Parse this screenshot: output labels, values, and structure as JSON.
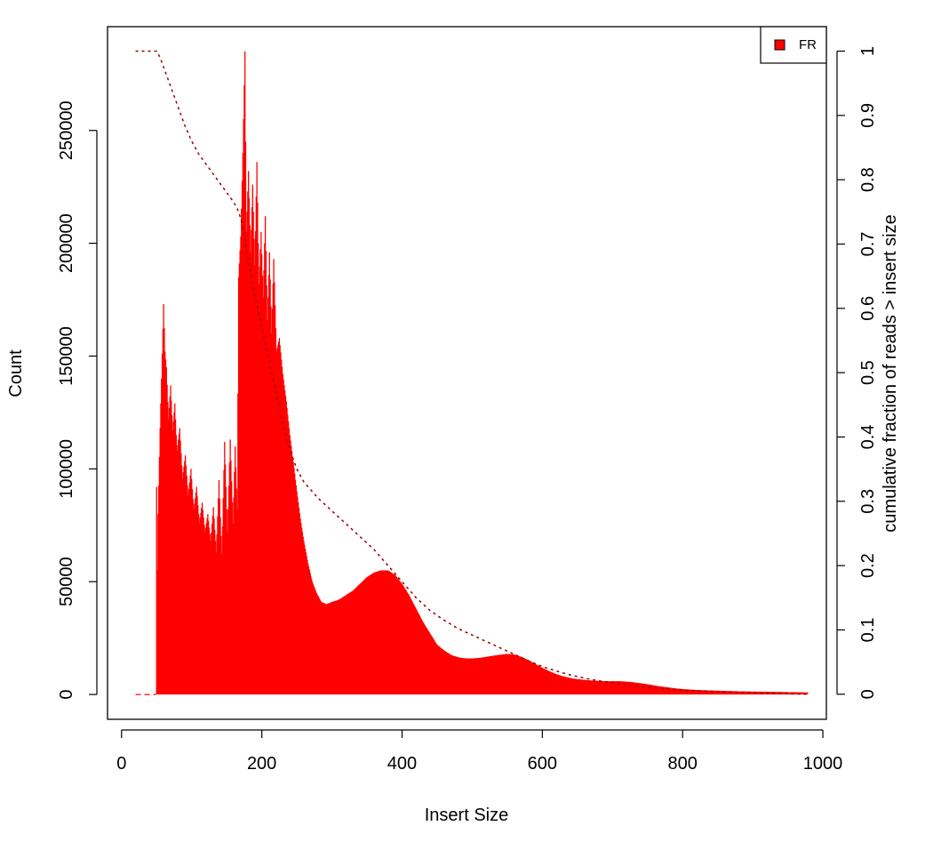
{
  "chart_data": {
    "type": "area",
    "title": "",
    "xlabel": "Insert Size",
    "ylabel": "Count",
    "y2label": "cumulative fraction of reads > insert size",
    "xlim": [
      -20,
      1005
    ],
    "ylim": [
      -11000,
      296000
    ],
    "y2lim": [
      -0.039,
      1.038
    ],
    "xticks": [
      0,
      200,
      400,
      600,
      800,
      1000
    ],
    "yticks": [
      0,
      50000,
      100000,
      150000,
      200000,
      250000
    ],
    "y2ticks": [
      0,
      0.1,
      0.2,
      0.3,
      0.4,
      0.5,
      0.6,
      0.7,
      0.8,
      0.9,
      1
    ],
    "legend": {
      "position": "top-right",
      "entries": [
        {
          "label": "FR",
          "color": "#ff0000"
        }
      ]
    },
    "colors": {
      "histogram": "#ff0000",
      "cumulative": "#990000"
    },
    "series": [
      {
        "name": "FR",
        "kind": "histogram",
        "x_range": [
          20,
          978
        ],
        "points": [
          [
            20,
            0
          ],
          [
            45,
            0
          ],
          [
            49,
            0
          ],
          [
            50,
            92000
          ],
          [
            51,
            55000
          ],
          [
            52,
            80000
          ],
          [
            55,
            118000
          ],
          [
            57,
            140000
          ],
          [
            60,
            173000
          ],
          [
            62,
            152000
          ],
          [
            64,
            145000
          ],
          [
            67,
            122000
          ],
          [
            70,
            137000
          ],
          [
            73,
            117000
          ],
          [
            76,
            129000
          ],
          [
            79,
            108000
          ],
          [
            83,
            118000
          ],
          [
            87,
            96000
          ],
          [
            91,
            106000
          ],
          [
            95,
            88000
          ],
          [
            99,
            100000
          ],
          [
            103,
            82000
          ],
          [
            107,
            92000
          ],
          [
            111,
            76000
          ],
          [
            115,
            85000
          ],
          [
            119,
            72000
          ],
          [
            123,
            80000
          ],
          [
            127,
            68000
          ],
          [
            131,
            83000
          ],
          [
            135,
            63000
          ],
          [
            139,
            95000
          ],
          [
            143,
            62000
          ],
          [
            147,
            112000
          ],
          [
            151,
            72000
          ],
          [
            155,
            113000
          ],
          [
            159,
            76000
          ],
          [
            162,
            110000
          ],
          [
            165,
            82000
          ],
          [
            167,
            185000
          ],
          [
            170,
            203000
          ],
          [
            173,
            240000
          ],
          [
            176,
            285000
          ],
          [
            178,
            205000
          ],
          [
            181,
            232000
          ],
          [
            184,
            196000
          ],
          [
            187,
            226000
          ],
          [
            190,
            190000
          ],
          [
            193,
            236000
          ],
          [
            196,
            182000
          ],
          [
            199,
            205000
          ],
          [
            202,
            176000
          ],
          [
            205,
            212000
          ],
          [
            208,
            166000
          ],
          [
            211,
            196000
          ],
          [
            214,
            160000
          ],
          [
            217,
            193000
          ],
          [
            221,
            152000
          ],
          [
            225,
            158000
          ],
          [
            230,
            142000
          ],
          [
            235,
            130000
          ],
          [
            240,
            115000
          ],
          [
            245,
            103000
          ],
          [
            250,
            90000
          ],
          [
            255,
            78000
          ],
          [
            260,
            68000
          ],
          [
            266,
            58000
          ],
          [
            272,
            50000
          ],
          [
            278,
            45000
          ],
          [
            285,
            41000
          ],
          [
            292,
            40000
          ],
          [
            300,
            41000
          ],
          [
            310,
            42000
          ],
          [
            320,
            44000
          ],
          [
            330,
            46000
          ],
          [
            340,
            49000
          ],
          [
            350,
            52000
          ],
          [
            360,
            54000
          ],
          [
            370,
            55000
          ],
          [
            380,
            55000
          ],
          [
            390,
            53000
          ],
          [
            400,
            49000
          ],
          [
            410,
            44000
          ],
          [
            420,
            38000
          ],
          [
            430,
            32000
          ],
          [
            440,
            27000
          ],
          [
            450,
            22000
          ],
          [
            460,
            19500
          ],
          [
            470,
            17500
          ],
          [
            480,
            16500
          ],
          [
            490,
            16000
          ],
          [
            500,
            16000
          ],
          [
            510,
            16200
          ],
          [
            520,
            16700
          ],
          [
            530,
            17200
          ],
          [
            540,
            17600
          ],
          [
            550,
            18000
          ],
          [
            560,
            17700
          ],
          [
            570,
            16700
          ],
          [
            580,
            15200
          ],
          [
            590,
            13500
          ],
          [
            600,
            11800
          ],
          [
            610,
            10300
          ],
          [
            620,
            9000
          ],
          [
            630,
            8000
          ],
          [
            640,
            7300
          ],
          [
            650,
            6800
          ],
          [
            660,
            6500
          ],
          [
            670,
            6200
          ],
          [
            680,
            6000
          ],
          [
            690,
            5900
          ],
          [
            700,
            5900
          ],
          [
            710,
            5900
          ],
          [
            720,
            5700
          ],
          [
            730,
            5400
          ],
          [
            740,
            5000
          ],
          [
            750,
            4500
          ],
          [
            760,
            4000
          ],
          [
            770,
            3500
          ],
          [
            780,
            3100
          ],
          [
            790,
            2700
          ],
          [
            800,
            2400
          ],
          [
            810,
            2200
          ],
          [
            820,
            2000
          ],
          [
            830,
            1900
          ],
          [
            840,
            1800
          ],
          [
            850,
            1700
          ],
          [
            860,
            1600
          ],
          [
            870,
            1500
          ],
          [
            880,
            1400
          ],
          [
            890,
            1350
          ],
          [
            900,
            1300
          ],
          [
            910,
            1250
          ],
          [
            920,
            1200
          ],
          [
            930,
            1150
          ],
          [
            940,
            1100
          ],
          [
            950,
            1050
          ],
          [
            960,
            1000
          ],
          [
            970,
            950
          ],
          [
            978,
            900
          ]
        ]
      },
      {
        "name": "",
        "kind": "cumulative",
        "axis": "right",
        "points": [
          [
            20,
            1.0
          ],
          [
            35,
            1.0
          ],
          [
            50,
            1.0
          ],
          [
            55,
            0.99
          ],
          [
            60,
            0.975
          ],
          [
            70,
            0.945
          ],
          [
            80,
            0.915
          ],
          [
            90,
            0.885
          ],
          [
            100,
            0.86
          ],
          [
            110,
            0.84
          ],
          [
            120,
            0.825
          ],
          [
            130,
            0.81
          ],
          [
            140,
            0.795
          ],
          [
            150,
            0.78
          ],
          [
            160,
            0.765
          ],
          [
            165,
            0.755
          ],
          [
            170,
            0.74
          ],
          [
            176,
            0.71
          ],
          [
            180,
            0.68
          ],
          [
            190,
            0.62
          ],
          [
            200,
            0.57
          ],
          [
            210,
            0.52
          ],
          [
            220,
            0.47
          ],
          [
            230,
            0.42
          ],
          [
            240,
            0.38
          ],
          [
            250,
            0.35
          ],
          [
            260,
            0.33
          ],
          [
            280,
            0.305
          ],
          [
            300,
            0.285
          ],
          [
            320,
            0.265
          ],
          [
            340,
            0.245
          ],
          [
            360,
            0.225
          ],
          [
            380,
            0.2
          ],
          [
            400,
            0.175
          ],
          [
            420,
            0.15
          ],
          [
            440,
            0.13
          ],
          [
            460,
            0.115
          ],
          [
            480,
            0.102
          ],
          [
            500,
            0.092
          ],
          [
            520,
            0.082
          ],
          [
            540,
            0.072
          ],
          [
            560,
            0.062
          ],
          [
            580,
            0.052
          ],
          [
            600,
            0.043
          ],
          [
            620,
            0.036
          ],
          [
            640,
            0.03
          ],
          [
            660,
            0.025
          ],
          [
            680,
            0.021
          ],
          [
            700,
            0.018
          ],
          [
            720,
            0.015
          ],
          [
            740,
            0.012
          ],
          [
            760,
            0.01
          ],
          [
            780,
            0.008
          ],
          [
            800,
            0.006
          ],
          [
            820,
            0.005
          ],
          [
            850,
            0.004
          ],
          [
            880,
            0.003
          ],
          [
            910,
            0.002
          ],
          [
            940,
            0.001
          ],
          [
            960,
            0.0005
          ],
          [
            978,
            0
          ]
        ]
      }
    ]
  }
}
